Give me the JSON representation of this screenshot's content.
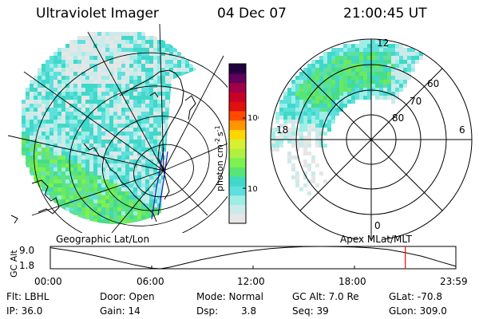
{
  "header": {
    "title": "Ultraviolet Imager",
    "date": "04 Dec 07",
    "time": "21:00:45 UT"
  },
  "colors": {
    "ocean_blue": "#1b1bc8",
    "cursor_red": "#ff0000",
    "palette": [
      "#e6e6e6",
      "#cdeaea",
      "#9eeee6",
      "#5ee0dc",
      "#40d8c8",
      "#56e676",
      "#7ef050",
      "#b0f040",
      "#d8f030",
      "#ffd600",
      "#ff9600",
      "#ff4a00",
      "#e01010",
      "#c80028",
      "#a0004a",
      "#60005a",
      "#200040"
    ]
  },
  "colorbar": {
    "unit_label": "photon cm^-2 s^-1",
    "unit_base": "photon cm",
    "unit_exp1": "-2",
    "unit_mid": "s",
    "unit_exp2": "-1",
    "tick_labels": [
      "100",
      "10"
    ]
  },
  "left_panel": {
    "caption": "Geographic Lat/Lon"
  },
  "right_panel": {
    "caption": "Apex MLat/MLT",
    "mlt_labels": [
      "12",
      "18",
      "6",
      "0"
    ],
    "lat_labels": [
      "60",
      "70",
      "80"
    ]
  },
  "chart_data": {
    "type": "line",
    "title": "",
    "ylabel": "GC Alt",
    "y_ticks": [
      "9.0",
      "1.8"
    ],
    "ylim": [
      1.8,
      9.0
    ],
    "x_ticks": [
      "00:00",
      "06:00",
      "12:00",
      "18:00",
      "23:59"
    ],
    "xlim_hours": [
      0,
      24
    ],
    "series": [
      {
        "x_hours": [
          0,
          1,
          2,
          3,
          4,
          5,
          6,
          6.5,
          7,
          8,
          9,
          10,
          11,
          12,
          13,
          14,
          15,
          16,
          17,
          18,
          19,
          20,
          21,
          22,
          23,
          24
        ],
        "values": [
          8.6,
          7.8,
          6.8,
          5.6,
          4.3,
          3.0,
          2.0,
          1.8,
          2.2,
          3.5,
          4.8,
          5.9,
          6.9,
          7.7,
          8.3,
          8.7,
          8.95,
          9.0,
          8.95,
          8.8,
          8.5,
          8.0,
          7.0,
          5.8,
          4.2,
          2.6
        ]
      }
    ],
    "cursor_time_hours": 21.01
  },
  "footer": {
    "flt": "Flt: LBHL",
    "ip": "IP: 36.0",
    "door": "Door: Open",
    "gain": "Gain: 14",
    "mode": "Mode: Normal",
    "dsp_label": "Dsp:",
    "dsp_value": "3.8",
    "gc_alt": "GC Alt: 7.0 Re",
    "seq": "Seq: 39",
    "glat": "GLat: -70.8",
    "glon": "GLon: 309.0"
  }
}
